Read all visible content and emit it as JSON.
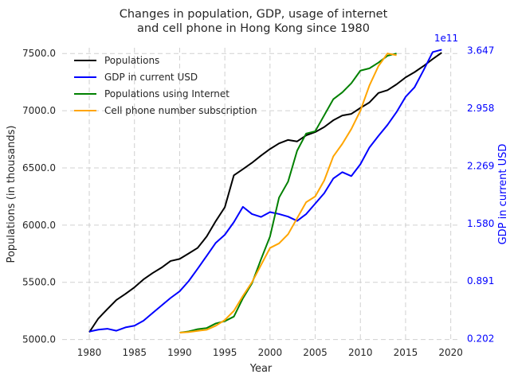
{
  "chart_data": {
    "type": "line",
    "title": "Changes in population, GDP, usage of internet\nand cell phone in Hong Kong since 1980",
    "xlabel": "Year",
    "ylabel": "Populations (in thousands)",
    "ylabel_right": "GDP in current USD",
    "right_offset_label": "1e11",
    "xlim": [
      1977,
      2021
    ],
    "ylim": [
      4990,
      7550
    ],
    "ylim_right": [
      0.18,
      3.68
    ],
    "x_ticks": [
      1980,
      1985,
      1990,
      1995,
      2000,
      2005,
      2010,
      2015,
      2020
    ],
    "y_ticks": [
      5000,
      5500,
      6000,
      6500,
      7000,
      7500
    ],
    "y_tick_labels": [
      "5000.0",
      "5500.0",
      "6000.0",
      "6500.0",
      "7000.0",
      "7500.0"
    ],
    "y_right_ticks": [
      0.202,
      0.891,
      1.58,
      2.269,
      2.958,
      3.647
    ],
    "y_right_tick_labels": [
      "0.202",
      "0.891",
      "1.580",
      "2.269",
      "2.958",
      "3.647"
    ],
    "grid": true,
    "legend_position": "top-left",
    "series": [
      {
        "name": "Populations",
        "color": "#000000",
        "axis": "left",
        "x": [
          1980,
          1981,
          1982,
          1983,
          1984,
          1985,
          1986,
          1987,
          1988,
          1989,
          1990,
          1991,
          1992,
          1993,
          1994,
          1995,
          1996,
          1997,
          1998,
          1999,
          2000,
          2001,
          2002,
          2003,
          2004,
          2005,
          2006,
          2007,
          2008,
          2009,
          2010,
          2011,
          2012,
          2013,
          2014,
          2015,
          2016,
          2017,
          2018,
          2019
        ],
        "values": [
          5063,
          5183,
          5265,
          5345,
          5398,
          5456,
          5525,
          5580,
          5628,
          5686,
          5704,
          5752,
          5801,
          5901,
          6035,
          6156,
          6435,
          6489,
          6544,
          6607,
          6665,
          6714,
          6744,
          6731,
          6784,
          6813,
          6857,
          6916,
          6958,
          6972,
          7024,
          7072,
          7155,
          7179,
          7230,
          7291,
          7337,
          7391,
          7451,
          7507
        ]
      },
      {
        "name": "GDP in current USD",
        "color": "#0000ff",
        "axis": "right",
        "x": [
          1980,
          1981,
          1982,
          1983,
          1984,
          1985,
          1986,
          1987,
          1988,
          1989,
          1990,
          1991,
          1992,
          1993,
          1994,
          1995,
          1996,
          1997,
          1998,
          1999,
          2000,
          2001,
          2002,
          2003,
          2004,
          2005,
          2006,
          2007,
          2008,
          2009,
          2010,
          2011,
          2012,
          2013,
          2014,
          2015,
          2016,
          2017,
          2018,
          2019
        ],
        "values": [
          0.288,
          0.311,
          0.322,
          0.298,
          0.338,
          0.358,
          0.418,
          0.509,
          0.6,
          0.69,
          0.769,
          0.891,
          1.04,
          1.194,
          1.349,
          1.445,
          1.596,
          1.779,
          1.693,
          1.658,
          1.716,
          1.693,
          1.662,
          1.611,
          1.692,
          1.817,
          1.942,
          2.117,
          2.193,
          2.146,
          2.288,
          2.488,
          2.627,
          2.758,
          2.911,
          3.093,
          3.209,
          3.413,
          3.628,
          3.657
        ]
      },
      {
        "name": "Populations using Internet",
        "color": "#008000",
        "axis": "left",
        "x": [
          1990,
          1991,
          1992,
          1993,
          1994,
          1995,
          1996,
          1997,
          1998,
          1999,
          2000,
          2001,
          2002,
          2003,
          2004,
          2005,
          2006,
          2007,
          2008,
          2009,
          2010,
          2011,
          2012,
          2013,
          2014
        ],
        "values": [
          5060,
          5070,
          5090,
          5100,
          5140,
          5160,
          5200,
          5360,
          5490,
          5700,
          5900,
          6240,
          6380,
          6650,
          6800,
          6820,
          6960,
          7100,
          7160,
          7240,
          7350,
          7370,
          7420,
          7480,
          7500
        ]
      },
      {
        "name": "Cell phone number subscription",
        "color": "#ffa500",
        "axis": "left",
        "x": [
          1990,
          1991,
          1992,
          1993,
          1994,
          1995,
          1996,
          1997,
          1998,
          1999,
          2000,
          2001,
          2002,
          2003,
          2004,
          2005,
          2006,
          2007,
          2008,
          2009,
          2010,
          2011,
          2012,
          2013,
          2014
        ],
        "values": [
          5060,
          5065,
          5075,
          5085,
          5120,
          5170,
          5250,
          5380,
          5500,
          5650,
          5800,
          5840,
          5920,
          6060,
          6200,
          6250,
          6390,
          6600,
          6710,
          6840,
          7000,
          7220,
          7390,
          7500,
          7485
        ]
      }
    ]
  }
}
